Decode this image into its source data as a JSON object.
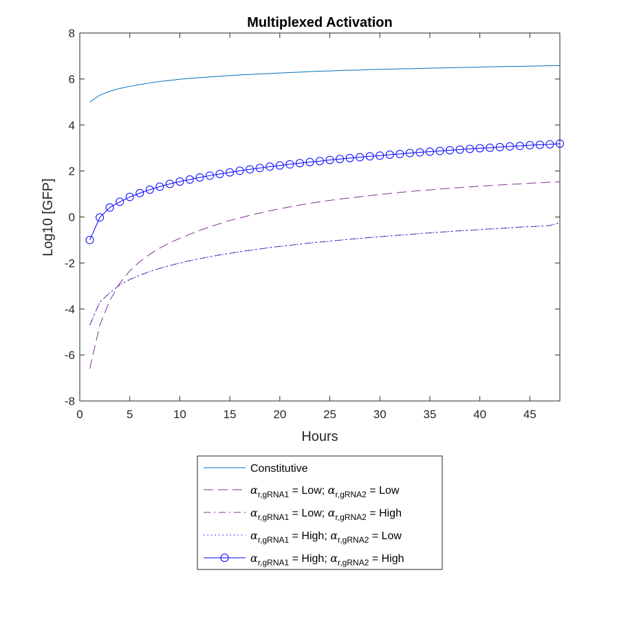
{
  "chart_data": {
    "type": "line",
    "title": "Multiplexed Activation",
    "xlabel": "Hours",
    "ylabel": "Log10 [GFP]",
    "xlim": [
      0,
      48
    ],
    "ylim": [
      -8,
      8
    ],
    "xticks": [
      "0",
      "5",
      "10",
      "15",
      "20",
      "25",
      "30",
      "35",
      "40",
      "45"
    ],
    "yticks": [
      "-8",
      "-6",
      "-4",
      "-2",
      "0",
      "2",
      "4",
      "6",
      "8"
    ],
    "x": [
      1,
      2,
      3,
      4,
      5,
      6,
      7,
      8,
      9,
      10,
      11,
      12,
      13,
      14,
      15,
      16,
      17,
      18,
      19,
      20,
      21,
      22,
      23,
      24,
      25,
      26,
      27,
      28,
      29,
      30,
      31,
      32,
      33,
      34,
      35,
      36,
      37,
      38,
      39,
      40,
      41,
      42,
      43,
      44,
      45,
      46,
      47,
      48
    ],
    "grid": false,
    "legend_position": "bottom-outside",
    "colors": {
      "constitutive": "#0072BD",
      "purple": "#7E2F8E",
      "blue": "#0000FF",
      "axis": "#262626"
    },
    "series": [
      {
        "key": "constitutive",
        "style": "solid",
        "color": "#0072BD",
        "marker": "none",
        "values": [
          5.0,
          5.3,
          5.47,
          5.59,
          5.68,
          5.76,
          5.83,
          5.89,
          5.94,
          5.99,
          6.03,
          6.06,
          6.09,
          6.12,
          6.15,
          6.18,
          6.2,
          6.22,
          6.24,
          6.26,
          6.28,
          6.3,
          6.32,
          6.34,
          6.35,
          6.37,
          6.38,
          6.39,
          6.41,
          6.42,
          6.43,
          6.44,
          6.45,
          6.46,
          6.47,
          6.48,
          6.49,
          6.5,
          6.51,
          6.52,
          6.53,
          6.54,
          6.55,
          6.55,
          6.56,
          6.57,
          6.58,
          6.58
        ],
        "legend": [
          {
            "t": "Constitutive"
          }
        ]
      },
      {
        "key": "low_low",
        "style": "dashed",
        "color": "#7E2F8E",
        "marker": "none",
        "values": [
          -6.6,
          -4.7,
          -3.63,
          -2.88,
          -2.34,
          -1.94,
          -1.62,
          -1.35,
          -1.12,
          -0.93,
          -0.75,
          -0.58,
          -0.43,
          -0.29,
          -0.15,
          -0.04,
          0.07,
          0.17,
          0.27,
          0.36,
          0.44,
          0.52,
          0.59,
          0.66,
          0.72,
          0.78,
          0.83,
          0.88,
          0.93,
          0.98,
          1.02,
          1.07,
          1.11,
          1.15,
          1.18,
          1.22,
          1.25,
          1.28,
          1.31,
          1.34,
          1.37,
          1.39,
          1.42,
          1.44,
          1.47,
          1.49,
          1.51,
          1.53
        ],
        "legend": [
          {
            "t": "α",
            "greek": true
          },
          {
            "t": "r,gRNA1",
            "sub": true
          },
          {
            "t": " = Low; "
          },
          {
            "t": "α",
            "greek": true
          },
          {
            "t": "r,gRNA2",
            "sub": true
          },
          {
            "t": " = Low"
          }
        ]
      },
      {
        "key": "low_high",
        "style": "dashdot",
        "color": "#7E2F8E",
        "marker": "none",
        "values": [
          -4.7,
          -3.7,
          -3.3,
          -2.95,
          -2.72,
          -2.53,
          -2.37,
          -2.23,
          -2.11,
          -2.0,
          -1.9,
          -1.81,
          -1.73,
          -1.65,
          -1.58,
          -1.51,
          -1.45,
          -1.39,
          -1.33,
          -1.28,
          -1.23,
          -1.18,
          -1.13,
          -1.09,
          -1.05,
          -1.01,
          -0.97,
          -0.93,
          -0.89,
          -0.86,
          -0.82,
          -0.79,
          -0.76,
          -0.72,
          -0.69,
          -0.66,
          -0.63,
          -0.6,
          -0.58,
          -0.55,
          -0.52,
          -0.5,
          -0.47,
          -0.44,
          -0.42,
          -0.4,
          -0.37,
          -0.25
        ],
        "legend": [
          {
            "t": "α",
            "greek": true
          },
          {
            "t": "r,gRNA1",
            "sub": true
          },
          {
            "t": " = Low; "
          },
          {
            "t": "α",
            "greek": true
          },
          {
            "t": "r,gRNA2",
            "sub": true
          },
          {
            "t": " = High"
          }
        ]
      },
      {
        "key": "high_low",
        "style": "dotted",
        "color": "#0000FF",
        "marker": "none",
        "values": [
          -4.7,
          -3.7,
          -3.3,
          -2.95,
          -2.72,
          -2.53,
          -2.37,
          -2.23,
          -2.11,
          -2.0,
          -1.9,
          -1.81,
          -1.73,
          -1.65,
          -1.58,
          -1.51,
          -1.45,
          -1.39,
          -1.33,
          -1.28,
          -1.23,
          -1.18,
          -1.13,
          -1.09,
          -1.05,
          -1.01,
          -0.97,
          -0.93,
          -0.89,
          -0.86,
          -0.82,
          -0.79,
          -0.76,
          -0.72,
          -0.69,
          -0.66,
          -0.63,
          -0.6,
          -0.58,
          -0.55,
          -0.52,
          -0.5,
          -0.47,
          -0.44,
          -0.42,
          -0.4,
          -0.37,
          -0.25
        ],
        "legend": [
          {
            "t": "α",
            "greek": true
          },
          {
            "t": "r,gRNA1",
            "sub": true
          },
          {
            "t": " = High; "
          },
          {
            "t": "α",
            "greek": true
          },
          {
            "t": "r,gRNA2",
            "sub": true
          },
          {
            "t": " = Low"
          }
        ]
      },
      {
        "key": "high_high",
        "style": "solid",
        "color": "#0000FF",
        "marker": "circle",
        "values": [
          -1.0,
          -0.02,
          0.41,
          0.66,
          0.87,
          1.04,
          1.19,
          1.32,
          1.44,
          1.54,
          1.63,
          1.72,
          1.8,
          1.87,
          1.94,
          2.01,
          2.07,
          2.13,
          2.19,
          2.24,
          2.29,
          2.34,
          2.39,
          2.43,
          2.48,
          2.52,
          2.56,
          2.6,
          2.64,
          2.67,
          2.71,
          2.74,
          2.78,
          2.81,
          2.84,
          2.87,
          2.9,
          2.93,
          2.96,
          2.99,
          3.01,
          3.04,
          3.07,
          3.09,
          3.12,
          3.14,
          3.16,
          3.19
        ],
        "legend": [
          {
            "t": "α",
            "greek": true
          },
          {
            "t": "r,gRNA1",
            "sub": true
          },
          {
            "t": " = High; "
          },
          {
            "t": "α",
            "greek": true
          },
          {
            "t": "r,gRNA2",
            "sub": true
          },
          {
            "t": " = High"
          }
        ]
      }
    ]
  }
}
